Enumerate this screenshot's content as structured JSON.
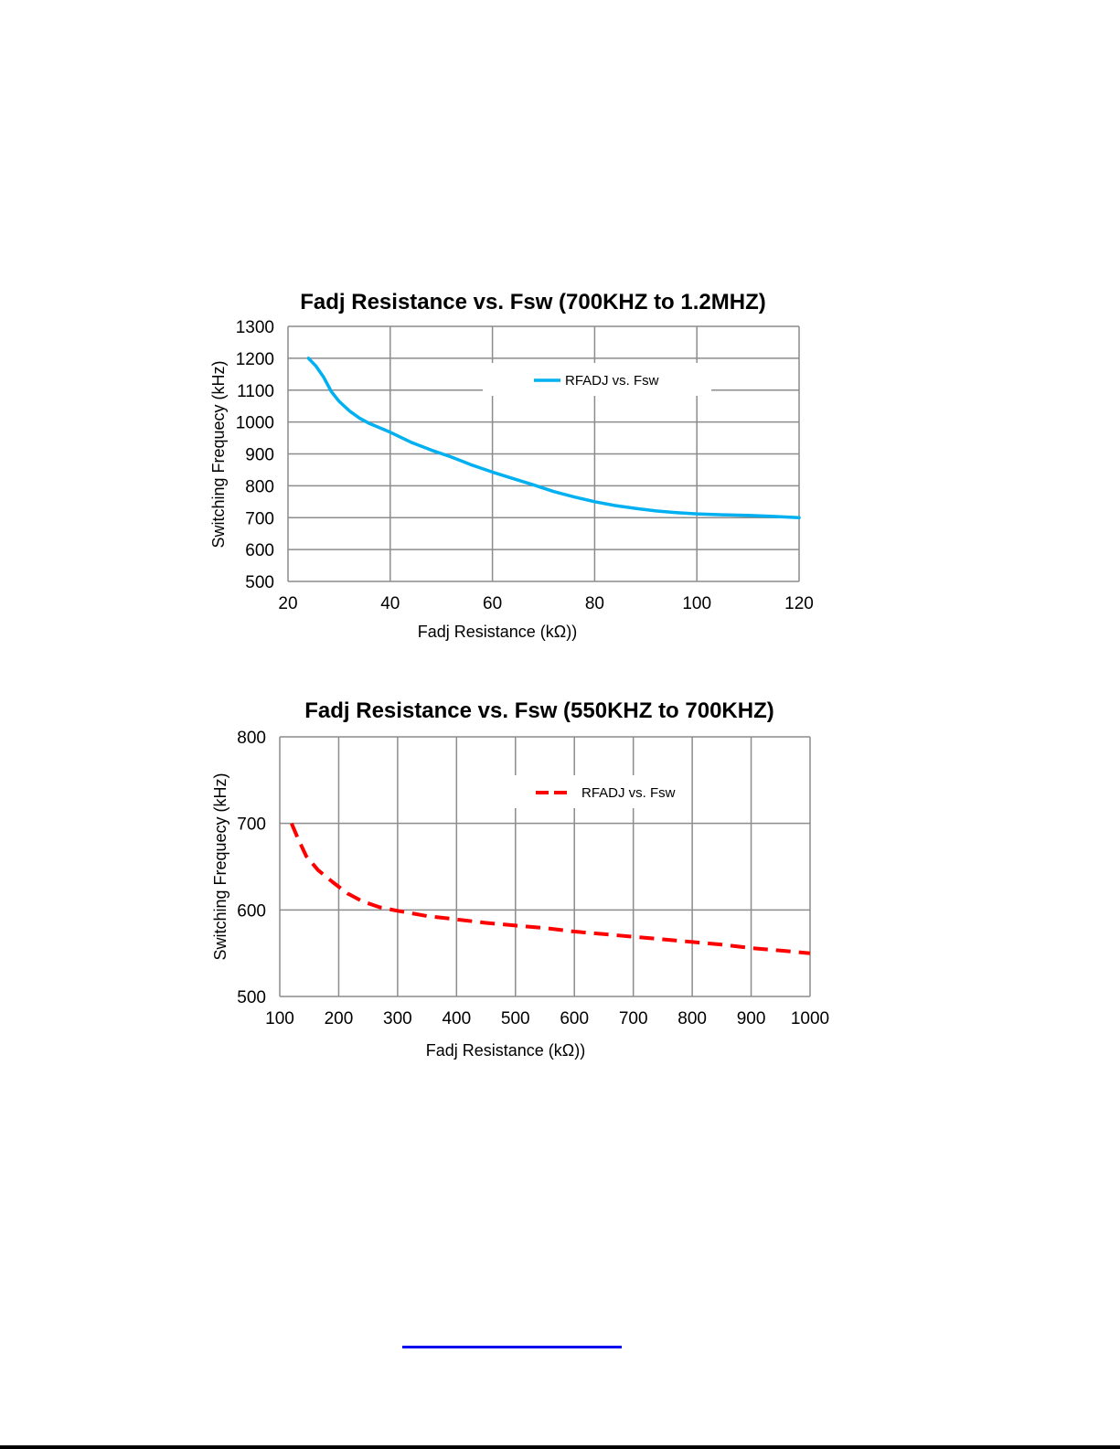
{
  "chart_data": [
    {
      "type": "line",
      "title": "Fadj Resistance vs. Fsw (700KHZ to 1.2MHZ)",
      "xlabel": "Fadj Resistance (kΩ))",
      "ylabel": "Switching Frequecy (kHz)",
      "xlim": [
        20,
        120
      ],
      "ylim": [
        500,
        1300
      ],
      "xticks": [
        "20",
        "40",
        "60",
        "80",
        "100",
        "120"
      ],
      "yticks": [
        "500",
        "600",
        "700",
        "800",
        "900",
        "1000",
        "1100",
        "1200",
        "1300"
      ],
      "grid": true,
      "legend_position": "top-right",
      "series": [
        {
          "name": "RFADJ vs. Fsw",
          "color": "#00b0f0",
          "style": "solid",
          "x": [
            24,
            25.5,
            27,
            28.5,
            30,
            32,
            34,
            36,
            40,
            44,
            48,
            52,
            56,
            60,
            64,
            68,
            72,
            76,
            80,
            84,
            88,
            92,
            96,
            100,
            105,
            110,
            115,
            120
          ],
          "y": [
            1200,
            1175,
            1140,
            1095,
            1065,
            1035,
            1012,
            995,
            968,
            937,
            912,
            890,
            865,
            843,
            823,
            803,
            782,
            765,
            750,
            738,
            729,
            721,
            716,
            712,
            709,
            707,
            704,
            700
          ]
        }
      ]
    },
    {
      "type": "line",
      "title": "Fadj Resistance vs. Fsw (550KHZ to 700KHZ)",
      "xlabel": "Fadj Resistance (kΩ))",
      "ylabel": "Switching Frequecy (kHz)",
      "xlim": [
        100,
        1000
      ],
      "ylim": [
        500,
        800
      ],
      "xticks": [
        "100",
        "200",
        "300",
        "400",
        "500",
        "600",
        "700",
        "800",
        "900",
        "1000"
      ],
      "yticks": [
        "500",
        "600",
        "700",
        "800"
      ],
      "grid": true,
      "legend_position": "top-right",
      "series": [
        {
          "name": "RFADJ vs. Fsw",
          "color": "#ff0000",
          "style": "dashed",
          "x": [
            120,
            130,
            145,
            165,
            190,
            215,
            240,
            270,
            300,
            350,
            400,
            450,
            500,
            550,
            600,
            650,
            700,
            750,
            800,
            850,
            900,
            950,
            1000
          ],
          "y": [
            700,
            684,
            662,
            646,
            632,
            619,
            610,
            603,
            599,
            593,
            589,
            585,
            582,
            579,
            575,
            572,
            569,
            566,
            563,
            560,
            556,
            553,
            550
          ]
        }
      ]
    }
  ]
}
